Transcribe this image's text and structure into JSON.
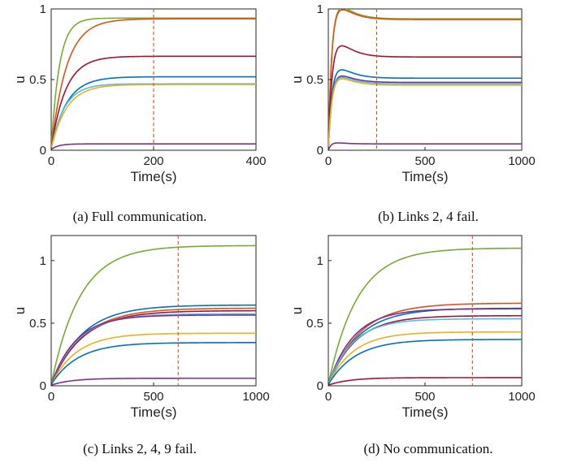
{
  "chart_data": [
    {
      "type": "line",
      "caption": "(a) Full communication.",
      "xlabel": "Time(s)",
      "ylabel": "u",
      "xlim": [
        0,
        400
      ],
      "ylim": [
        0,
        1
      ],
      "xticks": [
        0,
        200,
        400
      ],
      "xtick_labels": [
        "0",
        "200",
        "400"
      ],
      "yticks": [
        0,
        0.5,
        1
      ],
      "ytick_labels": [
        "0",
        "0.5",
        "1"
      ],
      "vline": 200,
      "grid": false,
      "series": [
        {
          "color": "#77ac30",
          "final": 0.935,
          "tau": 16,
          "start": 0.01
        },
        {
          "color": "#d95319",
          "final": 0.93,
          "tau": 30,
          "start": 0.01
        },
        {
          "color": "#a2142f",
          "final": 0.665,
          "tau": 28,
          "start": 0.01
        },
        {
          "color": "#0072bd",
          "final": 0.52,
          "tau": 30,
          "start": 0.01
        },
        {
          "color": "#4dbeee",
          "final": 0.47,
          "tau": 26,
          "start": 0.01
        },
        {
          "color": "#edb120",
          "final": 0.465,
          "tau": 30,
          "start": 0.01
        },
        {
          "color": "#7e2f8e",
          "final": 0.045,
          "tau": 14,
          "start": 0.005
        }
      ]
    },
    {
      "type": "line",
      "caption": "(b) Links 2, 4 fail.",
      "xlabel": "Time(s)",
      "ylabel": "u",
      "xlim": [
        0,
        1000
      ],
      "ylim": [
        0,
        1
      ],
      "xticks": [
        0,
        500,
        1000
      ],
      "xtick_labels": [
        "0",
        "500",
        "1000"
      ],
      "yticks": [
        0,
        0.5,
        1
      ],
      "ytick_labels": [
        "0",
        "0.5",
        "1"
      ],
      "vline": 250,
      "grid": false,
      "series": [
        {
          "color": "#77ac30",
          "final": 0.93,
          "tau": 16,
          "start": 0.01,
          "peak": 0.99
        },
        {
          "color": "#d95319",
          "final": 0.925,
          "tau": 16,
          "start": 0.01,
          "peak": 0.98
        },
        {
          "color": "#a2142f",
          "final": 0.66,
          "tau": 16,
          "start": 0.01,
          "peak": 0.72
        },
        {
          "color": "#0072bd",
          "final": 0.51,
          "tau": 16,
          "start": 0.01,
          "peak": 0.555
        },
        {
          "color": "#7e2f8e",
          "final": 0.48,
          "tau": 16,
          "start": 0.01,
          "peak": 0.515
        },
        {
          "color": "#4dbeee",
          "final": 0.47,
          "tau": 16,
          "start": 0.01,
          "peak": 0.505
        },
        {
          "color": "#edb120",
          "final": 0.46,
          "tau": 16,
          "start": 0.01,
          "peak": 0.495
        },
        {
          "color": "#7e2f8e",
          "final": 0.045,
          "tau": 12,
          "start": 0.005,
          "peak": 0.05
        }
      ]
    },
    {
      "type": "line",
      "caption": "(c) Links 2, 4, 9 fail.",
      "xlabel": "Time(s)",
      "ylabel": "u",
      "xlim": [
        0,
        1000
      ],
      "ylim": [
        0,
        1.2
      ],
      "xticks": [
        0,
        500,
        1000
      ],
      "xtick_labels": [
        "0",
        "500",
        "1000"
      ],
      "yticks": [
        0,
        0.5,
        1
      ],
      "ytick_labels": [
        "0",
        "0.5",
        "1"
      ],
      "vline": 620,
      "grid": false,
      "series": [
        {
          "color": "#77ac30",
          "final": 1.12,
          "tau": 140,
          "start": 0.01
        },
        {
          "color": "#0072bd",
          "final": 0.645,
          "tau": 150,
          "start": 0.01
        },
        {
          "color": "#d95319",
          "final": 0.62,
          "tau": 155,
          "start": 0.01
        },
        {
          "color": "#a2142f",
          "final": 0.6,
          "tau": 150,
          "start": 0.01
        },
        {
          "color": "#4dbeee",
          "final": 0.575,
          "tau": 130,
          "start": 0.01
        },
        {
          "color": "#7e2f8e",
          "final": 0.565,
          "tau": 120,
          "start": 0.01
        },
        {
          "color": "#edb120",
          "final": 0.42,
          "tau": 125,
          "start": 0.01
        },
        {
          "color": "#0072bd",
          "final": 0.345,
          "tau": 130,
          "start": 0.01
        },
        {
          "color": "#7e2f8e",
          "final": 0.06,
          "tau": 100,
          "start": 0.005
        }
      ]
    },
    {
      "type": "line",
      "caption": "(d) No communication.",
      "xlabel": "Time(s)",
      "ylabel": "u",
      "xlim": [
        0,
        1000
      ],
      "ylim": [
        0,
        1.2
      ],
      "xticks": [
        0,
        500,
        1000
      ],
      "xtick_labels": [
        "0",
        "500",
        "1000"
      ],
      "yticks": [
        0,
        0.5,
        1
      ],
      "ytick_labels": [
        "0",
        "0.5",
        "1"
      ],
      "vline": 745,
      "grid": false,
      "series": [
        {
          "color": "#77ac30",
          "final": 1.1,
          "tau": 150,
          "start": 0.01
        },
        {
          "color": "#d95319",
          "final": 0.66,
          "tau": 160,
          "start": 0.01
        },
        {
          "color": "#0072bd",
          "final": 0.62,
          "tau": 155,
          "start": 0.01
        },
        {
          "color": "#7e2f8e",
          "final": 0.615,
          "tau": 130,
          "start": 0.01
        },
        {
          "color": "#a2142f",
          "final": 0.56,
          "tau": 140,
          "start": 0.01
        },
        {
          "color": "#4dbeee",
          "final": 0.535,
          "tau": 125,
          "start": 0.01
        },
        {
          "color": "#edb120",
          "final": 0.43,
          "tau": 130,
          "start": 0.01
        },
        {
          "color": "#0072bd",
          "final": 0.37,
          "tau": 140,
          "start": 0.01
        },
        {
          "color": "#a2142f",
          "final": 0.065,
          "tau": 110,
          "start": 0.005
        }
      ]
    }
  ]
}
